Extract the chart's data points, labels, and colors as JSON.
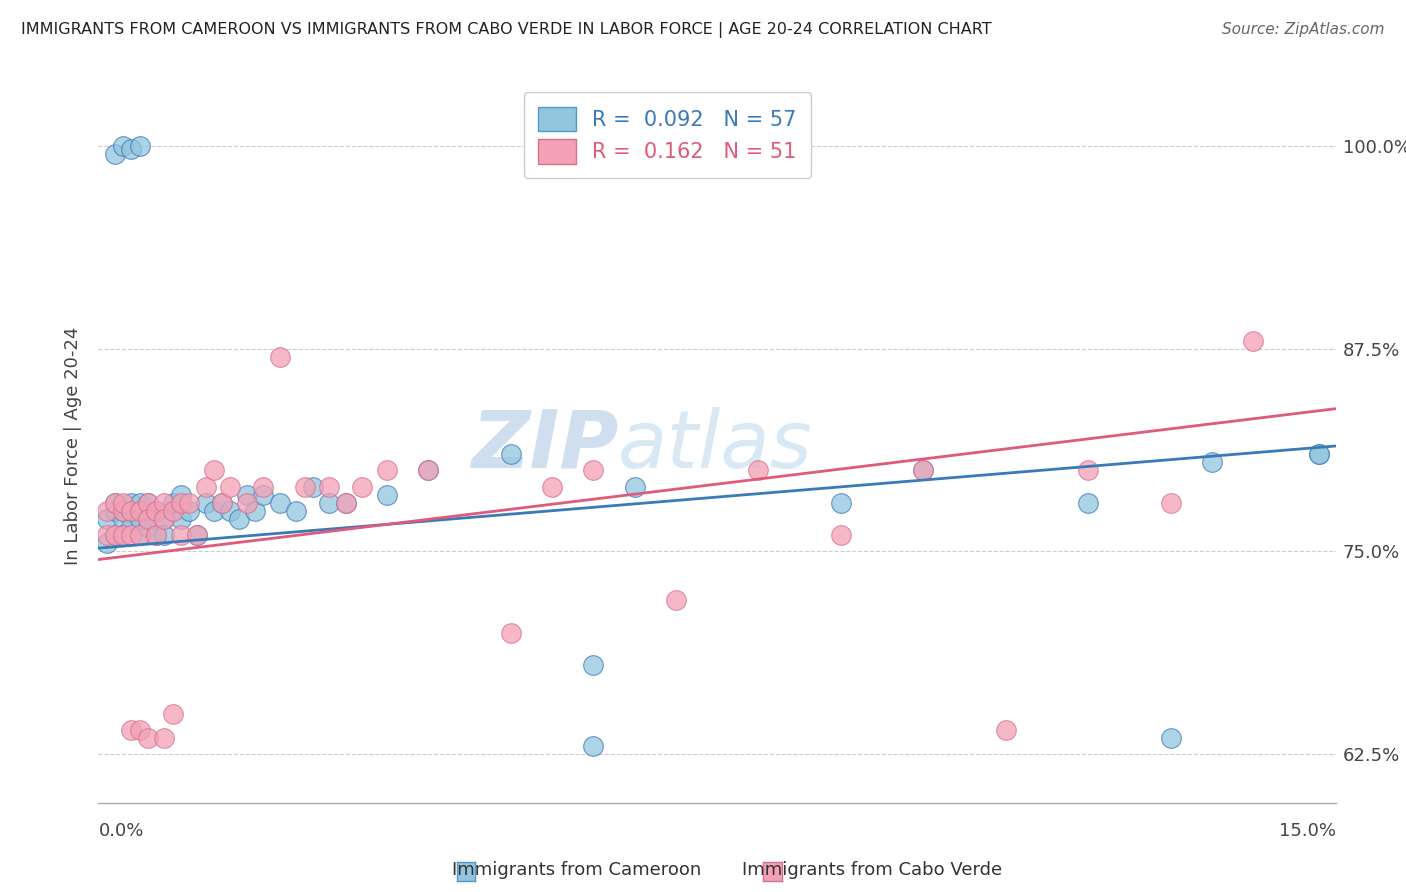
{
  "title": "IMMIGRANTS FROM CAMEROON VS IMMIGRANTS FROM CABO VERDE IN LABOR FORCE | AGE 20-24 CORRELATION CHART",
  "source": "Source: ZipAtlas.com",
  "ylabel": "In Labor Force | Age 20-24",
  "legend1_r": "0.092",
  "legend1_n": "57",
  "legend2_r": "0.162",
  "legend2_n": "51",
  "color_blue": "#92c5de",
  "color_pink": "#f4a0b5",
  "color_blue_line": "#3a7ab8",
  "color_pink_line": "#e05a7a",
  "watermark_top": "ZIP",
  "watermark_bot": "atlas",
  "xlim": [
    0.0,
    0.15
  ],
  "ylim": [
    0.595,
    1.035
  ],
  "ytick_vals": [
    0.625,
    0.75,
    0.875,
    1.0
  ],
  "ytick_labels": [
    "62.5%",
    "75.0%",
    "87.5%",
    "100.0%"
  ],
  "blue_scatter_x": [
    0.001,
    0.001,
    0.002,
    0.002,
    0.002,
    0.003,
    0.003,
    0.003,
    0.004,
    0.004,
    0.004,
    0.005,
    0.005,
    0.005,
    0.006,
    0.006,
    0.006,
    0.007,
    0.007,
    0.008,
    0.008,
    0.009,
    0.009,
    0.01,
    0.01,
    0.011,
    0.012,
    0.013,
    0.014,
    0.015,
    0.016,
    0.017,
    0.018,
    0.019,
    0.02,
    0.022,
    0.024,
    0.026,
    0.028,
    0.03,
    0.035,
    0.04,
    0.05,
    0.06,
    0.065,
    0.09,
    0.1,
    0.12,
    0.135,
    0.148,
    0.002,
    0.003,
    0.004,
    0.005,
    0.13,
    0.148,
    0.06
  ],
  "blue_scatter_y": [
    0.77,
    0.755,
    0.76,
    0.775,
    0.78,
    0.77,
    0.775,
    0.76,
    0.765,
    0.775,
    0.78,
    0.76,
    0.77,
    0.78,
    0.77,
    0.765,
    0.78,
    0.76,
    0.775,
    0.77,
    0.76,
    0.775,
    0.78,
    0.77,
    0.785,
    0.775,
    0.76,
    0.78,
    0.775,
    0.78,
    0.775,
    0.77,
    0.785,
    0.775,
    0.785,
    0.78,
    0.775,
    0.79,
    0.78,
    0.78,
    0.785,
    0.8,
    0.81,
    0.68,
    0.79,
    0.78,
    0.8,
    0.78,
    0.805,
    0.81,
    0.995,
    1.0,
    0.998,
    1.0,
    0.635,
    0.81,
    0.63
  ],
  "pink_scatter_x": [
    0.001,
    0.001,
    0.002,
    0.002,
    0.003,
    0.003,
    0.003,
    0.004,
    0.004,
    0.005,
    0.005,
    0.006,
    0.006,
    0.007,
    0.007,
    0.008,
    0.008,
    0.009,
    0.01,
    0.01,
    0.011,
    0.012,
    0.013,
    0.014,
    0.015,
    0.016,
    0.018,
    0.02,
    0.022,
    0.025,
    0.028,
    0.03,
    0.032,
    0.035,
    0.04,
    0.05,
    0.055,
    0.06,
    0.07,
    0.08,
    0.09,
    0.1,
    0.11,
    0.12,
    0.13,
    0.14,
    0.004,
    0.005,
    0.006,
    0.008,
    0.009
  ],
  "pink_scatter_y": [
    0.775,
    0.76,
    0.78,
    0.76,
    0.775,
    0.78,
    0.76,
    0.775,
    0.76,
    0.775,
    0.76,
    0.78,
    0.77,
    0.775,
    0.76,
    0.78,
    0.77,
    0.775,
    0.78,
    0.76,
    0.78,
    0.76,
    0.79,
    0.8,
    0.78,
    0.79,
    0.78,
    0.79,
    0.87,
    0.79,
    0.79,
    0.78,
    0.79,
    0.8,
    0.8,
    0.7,
    0.79,
    0.8,
    0.72,
    0.8,
    0.76,
    0.8,
    0.64,
    0.8,
    0.78,
    0.88,
    0.64,
    0.64,
    0.635,
    0.635,
    0.65
  ]
}
